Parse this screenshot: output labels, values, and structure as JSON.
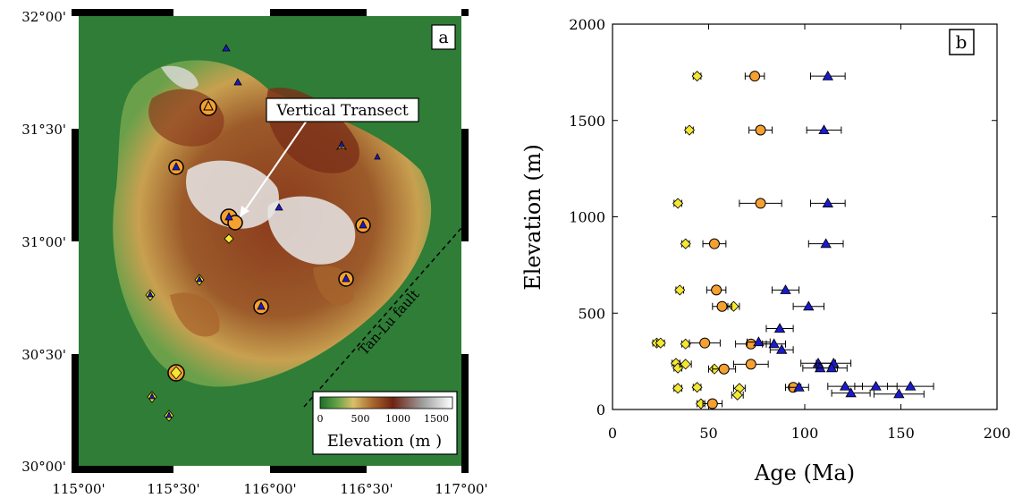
{
  "panel_a": {
    "panel_label": "a",
    "annotation": "Vertical Transect",
    "fault_label": "Tan-Lu fault",
    "lon_ticks": [
      "115°00'",
      "115°30'",
      "116°00'",
      "116°30'",
      "117°00'"
    ],
    "lat_ticks": [
      "32°00'",
      "31°30'",
      "31°00'",
      "30°30'",
      "30°00'"
    ],
    "colorbar": {
      "ticks": [
        "0",
        "500",
        "1000",
        "1500"
      ],
      "label": "Elevation (m )",
      "colors": [
        "#1e6e2a",
        "#5fa043",
        "#d8c06a",
        "#a8642c",
        "#6e2412",
        "#a0a0a0",
        "#ffffff"
      ]
    },
    "colors": {
      "lowland": "#2f7d36",
      "hill": "#c8a050",
      "mountain": "#7a3018",
      "peak": "#e8e8e8"
    }
  },
  "panel_b": {
    "panel_label": "b"
  },
  "chart_data": {
    "type": "scatter",
    "xlabel": "Age (Ma)",
    "ylabel": "Elevation (m)",
    "xlim": [
      0,
      200
    ],
    "ylim": [
      0,
      2000
    ],
    "xticks": [
      0,
      50,
      100,
      150,
      200
    ],
    "yticks": [
      0,
      500,
      1000,
      1500,
      2000
    ],
    "grid": false,
    "series": [
      {
        "marker": "diamond",
        "color": "#f5e830",
        "points": [
          {
            "x": 44,
            "y": 1730,
            "err": 2
          },
          {
            "x": 40,
            "y": 1450,
            "err": 2
          },
          {
            "x": 34,
            "y": 1070,
            "err": 2
          },
          {
            "x": 38,
            "y": 860,
            "err": 2
          },
          {
            "x": 35,
            "y": 620,
            "err": 2
          },
          {
            "x": 63,
            "y": 535,
            "err": 3
          },
          {
            "x": 23,
            "y": 345,
            "err": 2
          },
          {
            "x": 25,
            "y": 345,
            "err": 2
          },
          {
            "x": 38,
            "y": 340,
            "err": 2
          },
          {
            "x": 33,
            "y": 240,
            "err": 2
          },
          {
            "x": 34,
            "y": 215,
            "err": 2
          },
          {
            "x": 38,
            "y": 235,
            "err": 3
          },
          {
            "x": 53,
            "y": 210,
            "err": 3
          },
          {
            "x": 34,
            "y": 110,
            "err": 2
          },
          {
            "x": 44,
            "y": 115,
            "err": 2
          },
          {
            "x": 66,
            "y": 110,
            "err": 3
          },
          {
            "x": 65,
            "y": 75,
            "err": 3
          },
          {
            "x": 46,
            "y": 30,
            "err": 2
          }
        ]
      },
      {
        "marker": "circle",
        "color": "#f5a030",
        "points": [
          {
            "x": 74,
            "y": 1730,
            "err": 5
          },
          {
            "x": 77,
            "y": 1450,
            "err": 6
          },
          {
            "x": 77,
            "y": 1070,
            "err": 11
          },
          {
            "x": 53,
            "y": 860,
            "err": 6
          },
          {
            "x": 54,
            "y": 620,
            "err": 5
          },
          {
            "x": 57,
            "y": 535,
            "err": 5
          },
          {
            "x": 48,
            "y": 345,
            "err": 8
          },
          {
            "x": 72,
            "y": 340,
            "err": 8
          },
          {
            "x": 72,
            "y": 235,
            "err": 9
          },
          {
            "x": 58,
            "y": 210,
            "err": 6
          },
          {
            "x": 94,
            "y": 115,
            "err": 4
          },
          {
            "x": 52,
            "y": 30,
            "err": 5
          }
        ]
      },
      {
        "marker": "triangle",
        "color": "#1a1acc",
        "points": [
          {
            "x": 112,
            "y": 1730,
            "err": 9
          },
          {
            "x": 110,
            "y": 1450,
            "err": 9
          },
          {
            "x": 112,
            "y": 1070,
            "err": 9
          },
          {
            "x": 111,
            "y": 860,
            "err": 9
          },
          {
            "x": 90,
            "y": 620,
            "err": 7
          },
          {
            "x": 102,
            "y": 535,
            "err": 8
          },
          {
            "x": 87,
            "y": 420,
            "err": 7
          },
          {
            "x": 76,
            "y": 350,
            "err": 6
          },
          {
            "x": 84,
            "y": 340,
            "err": 6
          },
          {
            "x": 88,
            "y": 310,
            "err": 6
          },
          {
            "x": 107,
            "y": 240,
            "err": 9
          },
          {
            "x": 115,
            "y": 240,
            "err": 9
          },
          {
            "x": 108,
            "y": 215,
            "err": 9
          },
          {
            "x": 114,
            "y": 215,
            "err": 8
          },
          {
            "x": 97,
            "y": 115,
            "err": 5
          },
          {
            "x": 121,
            "y": 120,
            "err": 9
          },
          {
            "x": 137,
            "y": 120,
            "err": 11
          },
          {
            "x": 155,
            "y": 120,
            "err": 12
          },
          {
            "x": 124,
            "y": 85,
            "err": 10
          },
          {
            "x": 149,
            "y": 80,
            "err": 13
          }
        ]
      }
    ]
  }
}
